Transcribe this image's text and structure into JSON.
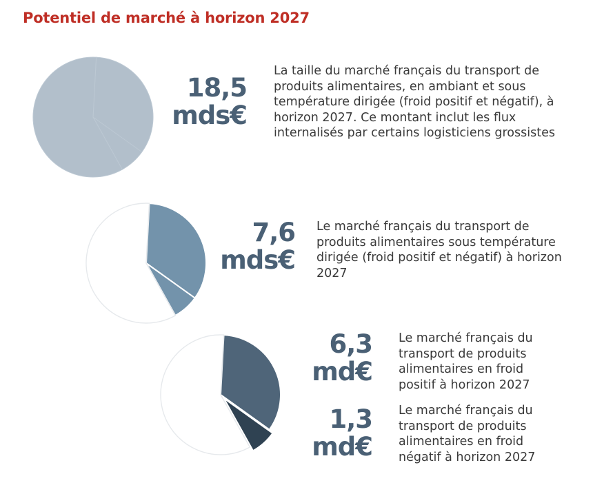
{
  "title": "Potentiel de marché à horizon 2027",
  "chart_data": [
    {
      "type": "pie",
      "value_label": "18,5\nmds€",
      "description": "La taille du marché français du transport de produits alimentaires, en ambiant et sous température dirigée (froid positif et négatif), à horizon 2027. Ce montant inclut les flux internalisés par certains logisticiens grossistes",
      "slices": [
        {
          "value": 6.3,
          "color": "#b2bfcb",
          "highlight": false
        },
        {
          "value": 1.3,
          "color": "#b2bfcb",
          "highlight": false
        },
        {
          "value": 10.9,
          "color": "#b2bfcb",
          "highlight": false
        }
      ]
    },
    {
      "type": "pie",
      "value_label": "7,6\nmds€",
      "description": "Le marché français du transport de produits alimentaires sous température dirigée (froid positif et négatif) à horizon 2027",
      "slices": [
        {
          "value": 6.3,
          "color": "#7393ab",
          "highlight": true
        },
        {
          "value": 1.3,
          "color": "#7393ab",
          "highlight": true
        },
        {
          "value": 10.9,
          "color": "#ffffff",
          "highlight": false
        }
      ]
    },
    {
      "type": "pie",
      "value_labels": [
        "6,3\nmd€",
        "1,3\nmd€"
      ],
      "descriptions": [
        "Le marché français du transport de produits alimentaires en froid positif à horizon 2027",
        "Le marché français du transport de produits alimentaires en froid négatif à horizon 2027"
      ],
      "slices": [
        {
          "value": 6.3,
          "color": "#4f6579",
          "highlight": true
        },
        {
          "value": 1.3,
          "color": "#2f4252",
          "highlight": true
        },
        {
          "value": 10.9,
          "color": "#ffffff",
          "highlight": false
        }
      ]
    }
  ]
}
